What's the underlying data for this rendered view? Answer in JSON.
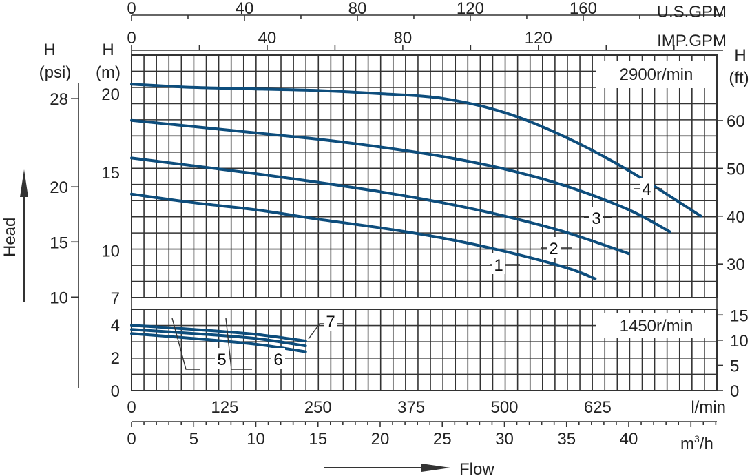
{
  "chart_data": {
    "type": "line",
    "axes": {
      "us_gpm": {
        "unit": "U.S.GPM",
        "ticks": [
          "0",
          "40",
          "80",
          "120",
          "160"
        ]
      },
      "imp_gpm": {
        "unit": "IMP.GPM",
        "ticks": [
          "0",
          "40",
          "80",
          "120"
        ]
      },
      "flow_lmin": {
        "unit": "l/min",
        "ticks": [
          "0",
          "125",
          "250",
          "375",
          "500",
          "625"
        ]
      },
      "flow_m3h": {
        "unit_base": "m",
        "unit_sup": "3",
        "unit_tail": "/h",
        "ticks": [
          "0",
          "5",
          "10",
          "15",
          "20",
          "25",
          "30",
          "35",
          "40"
        ]
      },
      "head_psi": {
        "label_top": "H",
        "label_bottom": "(psi)",
        "ticks": [
          "28",
          "20",
          "15",
          "10"
        ]
      },
      "head_m": {
        "label_top": "H",
        "label_bottom": "(m)",
        "ticks_upper": [
          "20",
          "15",
          "10",
          "7"
        ],
        "ticks_lower": [
          "4",
          "2",
          "0"
        ]
      },
      "head_ft": {
        "label_top": "H",
        "label_bottom": "(ft)",
        "ticks_upper": [
          "60",
          "50",
          "40",
          "30"
        ],
        "ticks_lower": [
          "15",
          "10",
          "5",
          "0"
        ]
      },
      "head_arrow_label": "Head",
      "flow_arrow_label": "Flow"
    },
    "panels": [
      {
        "speed": "2900r/min",
        "ylim": [
          7,
          21.5
        ],
        "series": [
          {
            "name": "1",
            "x": [
              0,
              5,
              10,
              15,
              20,
              25,
              30,
              35,
              37.3
            ],
            "y": [
              13.6,
              13.05,
              12.6,
              12.0,
              11.45,
              10.8,
              9.95,
              8.9,
              8.2
            ]
          },
          {
            "name": "2",
            "x": [
              0,
              5,
              10,
              15,
              20,
              25,
              30,
              35,
              40
            ],
            "y": [
              15.9,
              15.4,
              14.9,
              14.35,
              13.75,
              13.05,
              12.2,
              11.15,
              9.8
            ]
          },
          {
            "name": "3",
            "x": [
              0,
              5,
              10,
              15,
              20,
              25,
              30,
              35,
              40,
              43.3
            ],
            "y": [
              18.3,
              17.9,
              17.5,
              17.1,
              16.6,
              16.0,
              15.2,
              14.1,
              12.6,
              11.2
            ]
          },
          {
            "name": "4",
            "x": [
              0,
              5,
              10,
              15,
              20,
              25,
              30,
              35,
              40,
              45.8
            ],
            "y": [
              20.6,
              20.4,
              20.3,
              20.2,
              20.0,
              19.7,
              18.8,
              17.2,
              15.1,
              12.2
            ]
          }
        ]
      },
      {
        "speed": "1450r/min",
        "ylim": [
          0,
          4.9
        ],
        "series": [
          {
            "name": "5",
            "x": [
              0,
              5,
              10,
              14
            ],
            "y": [
              3.45,
              3.15,
              2.8,
              2.35
            ]
          },
          {
            "name": "6",
            "x": [
              0,
              5,
              10,
              14
            ],
            "y": [
              3.7,
              3.45,
              3.15,
              2.7
            ]
          },
          {
            "name": "7",
            "x": [
              0,
              5,
              10,
              14
            ],
            "y": [
              3.95,
              3.7,
              3.4,
              3.0
            ]
          }
        ]
      }
    ]
  },
  "colors": {
    "curve": "#0d4d7c",
    "grid": "#333333"
  }
}
